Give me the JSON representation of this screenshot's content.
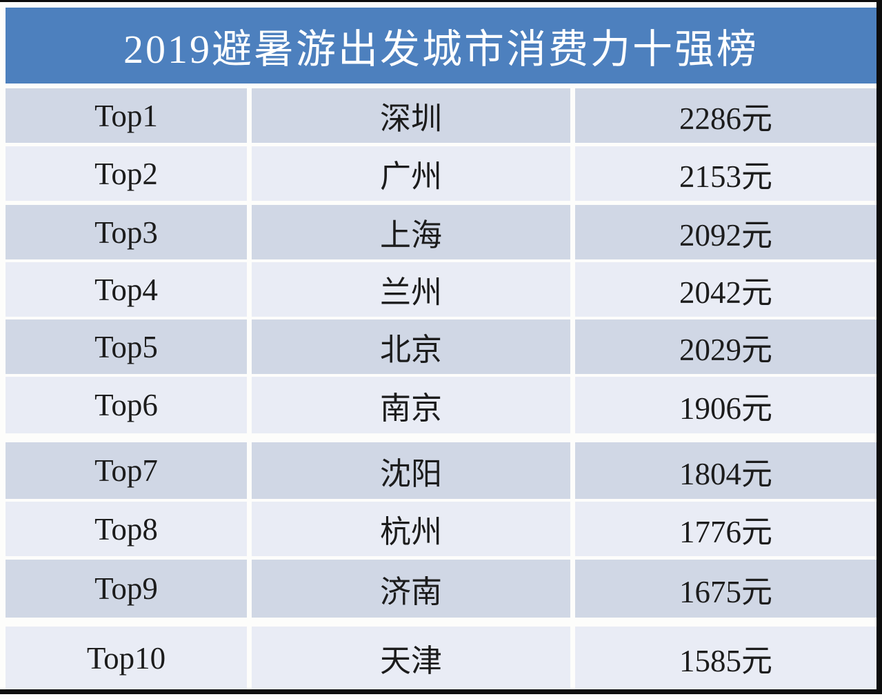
{
  "title": "2019避暑游出发城市消费力十强榜",
  "colors": {
    "header_bg": "#4D80BE",
    "row_dark": "#D0D7E5",
    "row_light": "#E9ECF5",
    "text": "#1C1C1C",
    "title_text": "#FFFFFF",
    "frame": "#0D0D0D"
  },
  "rows": [
    {
      "rank": "Top1",
      "city": "深圳",
      "amount": "2286元"
    },
    {
      "rank": "Top2",
      "city": "广州",
      "amount": "2153元"
    },
    {
      "rank": "Top3",
      "city": "上海",
      "amount": "2092元"
    },
    {
      "rank": "Top4",
      "city": "兰州",
      "amount": "2042元"
    },
    {
      "rank": "Top5",
      "city": "北京",
      "amount": "2029元"
    },
    {
      "rank": "Top6",
      "city": "南京",
      "amount": "1906元"
    },
    {
      "rank": "Top7",
      "city": "沈阳",
      "amount": "1804元"
    },
    {
      "rank": "Top8",
      "city": "杭州",
      "amount": "1776元"
    },
    {
      "rank": "Top9",
      "city": "济南",
      "amount": "1675元"
    },
    {
      "rank": "Top10",
      "city": "天津",
      "amount": "1585元"
    }
  ],
  "chart_data": {
    "type": "table",
    "title": "2019避暑游出发城市消费力十强榜",
    "columns": [
      "rank",
      "city",
      "amount"
    ],
    "unit": "元",
    "rows": [
      [
        "Top1",
        "深圳",
        2286
      ],
      [
        "Top2",
        "广州",
        2153
      ],
      [
        "Top3",
        "上海",
        2092
      ],
      [
        "Top4",
        "兰州",
        2042
      ],
      [
        "Top5",
        "北京",
        2029
      ],
      [
        "Top6",
        "南京",
        1906
      ],
      [
        "Top7",
        "沈阳",
        1804
      ],
      [
        "Top8",
        "杭州",
        1776
      ],
      [
        "Top9",
        "济南",
        1675
      ],
      [
        "Top10",
        "天津",
        1585
      ]
    ]
  }
}
